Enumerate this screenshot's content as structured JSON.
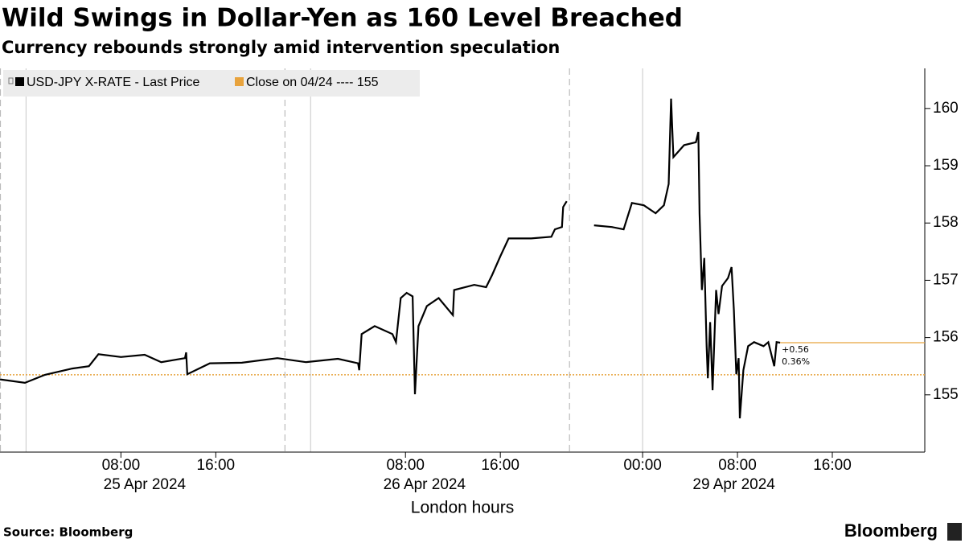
{
  "chart_data": {
    "type": "line",
    "title": "Wild Swings in Dollar-Yen as 160 Level Breached",
    "subtitle": "Currency rebounds strongly amid intervention speculation",
    "x_axis_label": "London hours",
    "source": "Source: Bloomberg",
    "brand": "Bloomberg",
    "legend": "top-left",
    "grid": false,
    "y_axis_side": "right",
    "xlim": [
      -2.2,
      75.8
    ],
    "ylim": [
      154.0,
      160.7
    ],
    "yticks": [
      155,
      156,
      157,
      158,
      159,
      160
    ],
    "xticks": [
      {
        "value": 8,
        "label": "08:00"
      },
      {
        "value": 16,
        "label": "16:00"
      },
      {
        "value": 32,
        "label": "08:00"
      },
      {
        "value": 40,
        "label": "16:00"
      },
      {
        "value": 52,
        "label": "00:00"
      },
      {
        "value": 60,
        "label": "08:00"
      },
      {
        "value": 68,
        "label": "16:00"
      }
    ],
    "date_labels": [
      {
        "value": 10,
        "label": "25 Apr 2024"
      },
      {
        "value": 33.6,
        "label": "26 Apr 2024"
      },
      {
        "value": 59.7,
        "label": "29 Apr 2024"
      }
    ],
    "day_lines": [
      0,
      24,
      52
    ],
    "session_lines": [
      -2.2,
      21.8,
      45.8
    ],
    "x": [
      -2.2,
      -0.1,
      1.6,
      3.9,
      5.3,
      6.1,
      8.0,
      10.0,
      11.4,
      13.4,
      13.5,
      13.6,
      15.5,
      18.2,
      21.2,
      23.6,
      26.3,
      28.0,
      28.1,
      28.3,
      29.4,
      30.9,
      31.2,
      31.6,
      32.1,
      32.6,
      32.8,
      33.1,
      33.8,
      34.8,
      36.0,
      36.1,
      37.8,
      38.8,
      39.3,
      40.0,
      40.7,
      42.6,
      44.3,
      44.6,
      45.2,
      45.3,
      45.6,
      46.5,
      47.9,
      49.4,
      50.4,
      51.1,
      52.1,
      53.1,
      53.8,
      54.2,
      54.4,
      54.6,
      55.5,
      56.5,
      56.7,
      56.8,
      57.0,
      57.2,
      57.4,
      57.5,
      57.7,
      57.9,
      58.2,
      58.4,
      58.7,
      59.2,
      59.5,
      59.7,
      59.9,
      60.1,
      60.2,
      60.5,
      60.9,
      61.4,
      62.2,
      62.6,
      63.1,
      63.3,
      63.6
    ],
    "series": [
      {
        "name": "USD-JPY X-RATE - Last Price",
        "color": "#000000",
        "values": [
          155.27,
          155.21,
          155.35,
          155.46,
          155.5,
          155.71,
          155.66,
          155.7,
          155.57,
          155.64,
          155.74,
          155.36,
          155.55,
          155.56,
          155.64,
          155.57,
          155.63,
          155.55,
          155.43,
          156.06,
          156.2,
          156.06,
          155.92,
          156.69,
          156.78,
          156.72,
          155.01,
          156.2,
          156.55,
          156.69,
          156.39,
          156.83,
          156.92,
          156.88,
          157.09,
          157.42,
          157.73,
          157.73,
          157.76,
          157.89,
          157.93,
          158.28,
          158.38,
          null,
          157.96,
          157.93,
          157.89,
          158.35,
          158.31,
          158.17,
          158.31,
          158.68,
          160.17,
          159.15,
          159.36,
          159.41,
          159.59,
          158.17,
          156.83,
          157.39,
          155.85,
          155.29,
          156.27,
          155.08,
          156.83,
          156.41,
          156.9,
          157.04,
          157.23,
          156.48,
          155.36,
          155.64,
          154.59,
          155.43,
          155.85,
          155.92,
          155.85,
          155.92,
          155.5,
          155.92,
          155.91
        ]
      }
    ],
    "reference": {
      "name": "Close on 04/24 ---- 155",
      "value": 155.35,
      "color": "#e8a33d"
    },
    "last_change": {
      "value": 0.56,
      "label": "+0.56"
    },
    "last_change_pct": {
      "value": 0.36,
      "label": "0.36%"
    }
  }
}
